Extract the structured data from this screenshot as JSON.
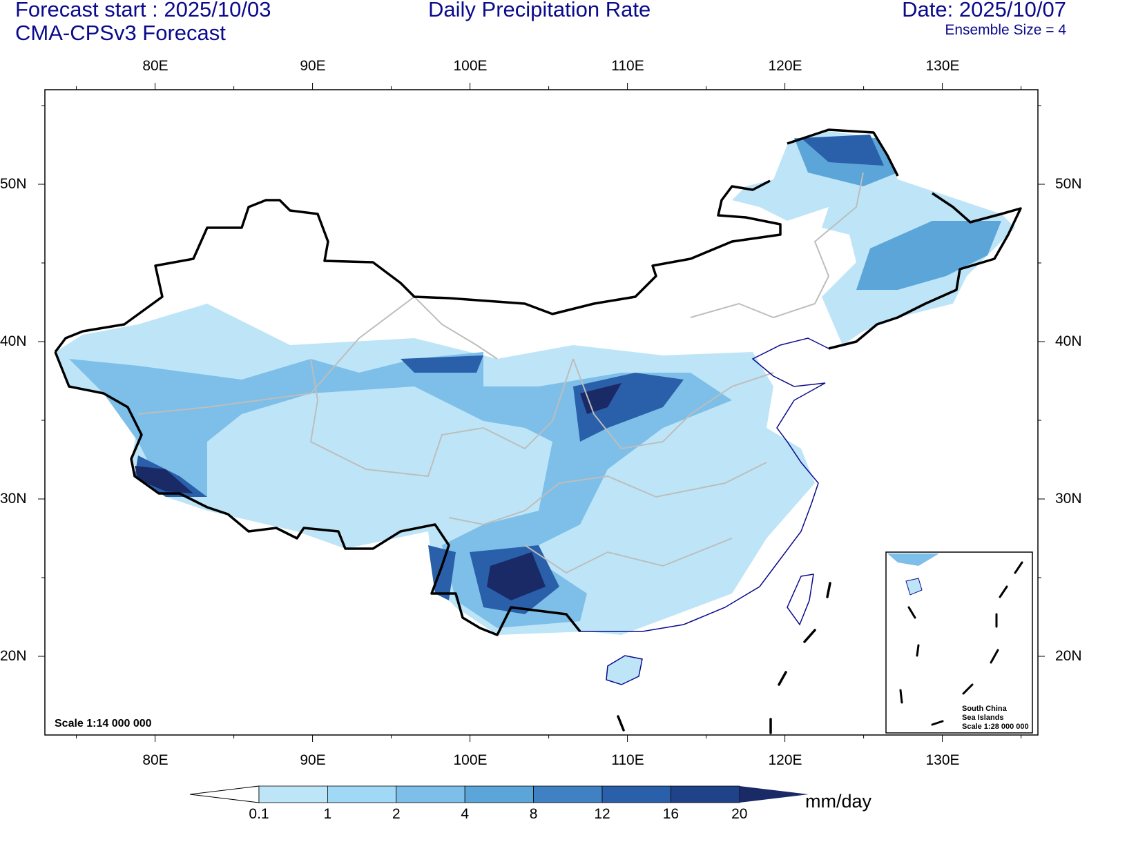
{
  "header": {
    "forecast_start": "Forecast start : 2025/10/03",
    "model": "CMA-CPSv3 Forecast",
    "title": "Daily Precipitation Rate",
    "date": "Date: 2025/10/07",
    "ensemble": "Ensemble Size = 4"
  },
  "axes": {
    "lon_labels": [
      "80E",
      "90E",
      "100E",
      "110E",
      "120E",
      "130E"
    ],
    "lat_labels": [
      "50N",
      "40N",
      "30N",
      "20N"
    ]
  },
  "scale_main": "Scale 1:14 000 000",
  "inset": {
    "line1": "South China",
    "line2": "Sea Islands",
    "line3": "Scale 1:28 000 000"
  },
  "colorbar": {
    "unit": "mm/day",
    "levels": [
      "0.1",
      "1",
      "2",
      "4",
      "8",
      "12",
      "16",
      "20"
    ],
    "colors": [
      "#ffffff",
      "#bde5f7",
      "#a0d9f5",
      "#7dbfe8",
      "#5ba5d8",
      "#3f81c3",
      "#2a5fa9",
      "#1f4288",
      "#1a2a66"
    ]
  }
}
